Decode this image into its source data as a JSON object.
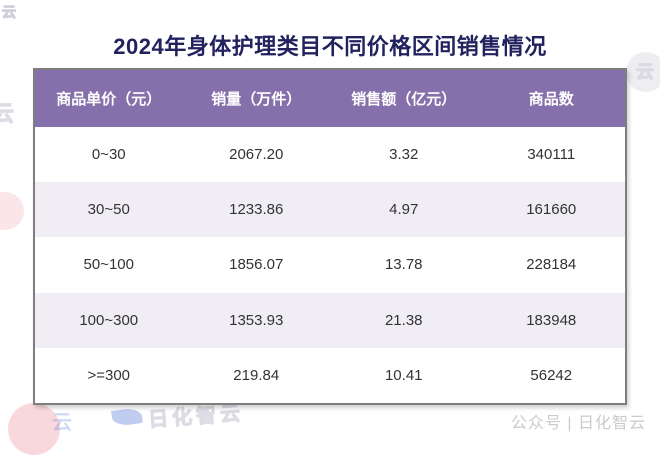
{
  "title": "2024年身体护理类目不同价格区间销售情况",
  "table": {
    "columns": [
      "商品单价（元）",
      "销量（万件）",
      "销售额（亿元）",
      "商品数"
    ],
    "rows": [
      [
        "0~30",
        "2067.20",
        "3.32",
        "340111"
      ],
      [
        "30~50",
        "1233.86",
        "4.97",
        "161660"
      ],
      [
        "50~100",
        "1856.07",
        "13.78",
        "228184"
      ],
      [
        "100~300",
        "1353.93",
        "21.38",
        "183948"
      ],
      [
        ">=300",
        "219.84",
        "10.41",
        "56242"
      ]
    ]
  },
  "chart_data": {
    "type": "table",
    "title": "2024年身体护理类目不同价格区间销售情况",
    "columns": [
      "商品单价（元）",
      "销量（万件）",
      "销售额（亿元）",
      "商品数"
    ],
    "rows": [
      {
        "price_range": "0~30",
        "sales_volume_10k_units": 2067.2,
        "sales_amount_100m_yuan": 3.32,
        "product_count": 340111
      },
      {
        "price_range": "30~50",
        "sales_volume_10k_units": 1233.86,
        "sales_amount_100m_yuan": 4.97,
        "product_count": 161660
      },
      {
        "price_range": "50~100",
        "sales_volume_10k_units": 1856.07,
        "sales_amount_100m_yuan": 13.78,
        "product_count": 228184
      },
      {
        "price_range": "100~300",
        "sales_volume_10k_units": 1353.93,
        "sales_amount_100m_yuan": 21.38,
        "product_count": 183948
      },
      {
        "price_range": ">=300",
        "sales_volume_10k_units": 219.84,
        "sales_amount_100m_yuan": 10.41,
        "product_count": 56242
      }
    ]
  },
  "watermarks": {
    "footer_credit": "公众号 | 日化智云",
    "brand_text": "日化智云",
    "brand_text_partial": "云"
  },
  "colors": {
    "header_bg": "#8670AB",
    "row_alt_bg": "#F0EDF5",
    "row_bg": "#FFFFFF",
    "title_text": "#22225E",
    "header_text": "#FFFFFF",
    "cell_text": "#333333",
    "table_border": "#7E7E7E",
    "watermark_pink": "#F0A9B4",
    "watermark_blue": "#4A6FD4",
    "footer_credit_text": "#CBCBCB"
  }
}
